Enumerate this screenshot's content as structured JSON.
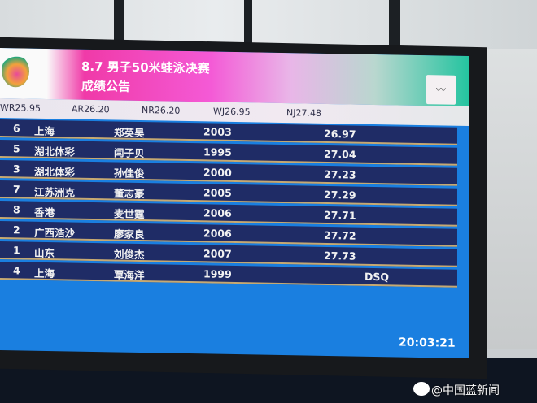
{
  "board": {
    "title": "8.7 男子50米蛙泳决赛",
    "subtitle": "成绩公告",
    "records": [
      "WR25.95",
      "AR26.20",
      "NR26.20",
      "WJ26.95",
      "NJ27.48"
    ],
    "results": [
      {
        "lane": "6",
        "team": "上海",
        "name": "郑英昊",
        "year": "2003",
        "time": "26.97"
      },
      {
        "lane": "5",
        "team": "湖北体彩",
        "name": "闫子贝",
        "year": "1995",
        "time": "27.04"
      },
      {
        "lane": "3",
        "team": "湖北体彩",
        "name": "孙佳俊",
        "year": "2000",
        "time": "27.23"
      },
      {
        "lane": "7",
        "team": "江苏洲克",
        "name": "董志豪",
        "year": "2005",
        "time": "27.29"
      },
      {
        "lane": "8",
        "team": "香港",
        "name": "麦世霆",
        "year": "2006",
        "time": "27.71"
      },
      {
        "lane": "2",
        "team": "广西浩沙",
        "name": "廖家良",
        "year": "2006",
        "time": "27.72"
      },
      {
        "lane": "1",
        "team": "山东",
        "name": "刘俊杰",
        "year": "2007",
        "time": "27.73"
      },
      {
        "lane": "4",
        "team": "上海",
        "name": "覃海洋",
        "year": "1999",
        "time": "DSQ"
      }
    ],
    "clock": "20:03:21"
  },
  "watermark": "@中国蓝新闻",
  "colors": {
    "screen": "#1a7fe0",
    "row": "#1f2c66",
    "header_accent": "#f03aa8"
  }
}
